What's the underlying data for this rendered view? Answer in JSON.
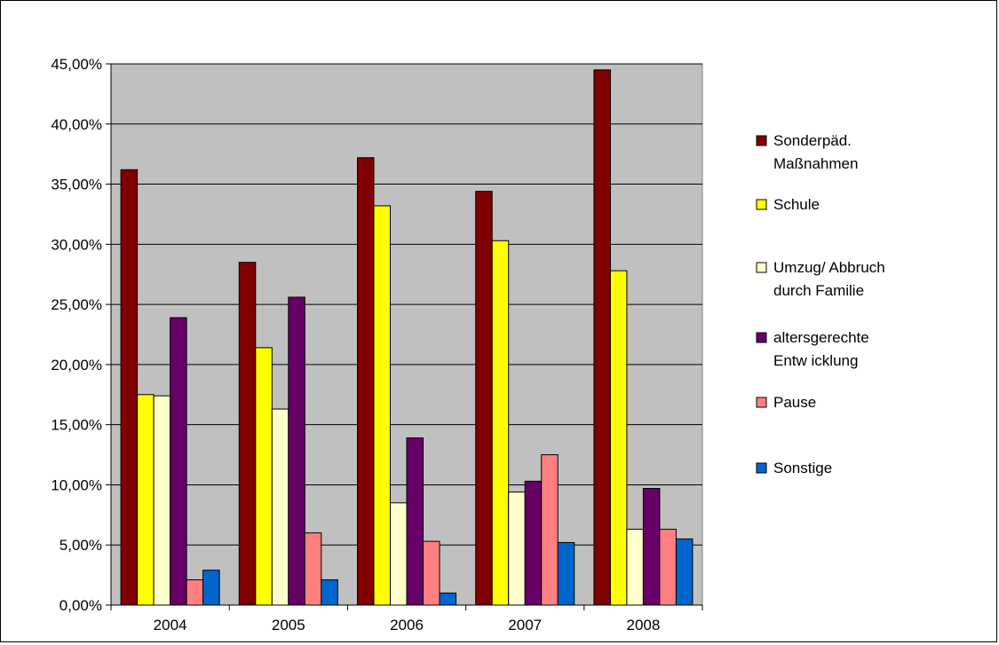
{
  "chart_data": {
    "type": "bar",
    "categories": [
      "2004",
      "2005",
      "2006",
      "2007",
      "2008"
    ],
    "series": [
      {
        "name": "Sonderpäd. Maßnahmen",
        "name_lines": [
          "Sonderpäd.",
          "Maßnahmen"
        ],
        "color": "#800000",
        "values": [
          36.2,
          28.5,
          37.2,
          34.4,
          44.5
        ]
      },
      {
        "name": "Schule",
        "name_lines": [
          "Schule"
        ],
        "color": "#FFFF00",
        "values": [
          17.5,
          21.4,
          33.2,
          30.3,
          27.8
        ]
      },
      {
        "name": "Umzug/ Abbruch durch Familie",
        "name_lines": [
          "Umzug/ Abbruch",
          "durch Familie"
        ],
        "color": "#FFFFCC",
        "values": [
          17.4,
          16.3,
          8.5,
          9.4,
          6.3
        ]
      },
      {
        "name": "altersgerechte Entw icklung",
        "name_lines": [
          "altersgerechte",
          "Entw icklung"
        ],
        "color": "#660066",
        "values": [
          23.9,
          25.6,
          13.9,
          10.3,
          9.7
        ]
      },
      {
        "name": "Pause",
        "name_lines": [
          "Pause"
        ],
        "color": "#FF8080",
        "values": [
          2.1,
          6.0,
          5.3,
          12.5,
          6.3
        ]
      },
      {
        "name": "Sonstige",
        "name_lines": [
          "Sonstige"
        ],
        "color": "#0066CC",
        "values": [
          2.9,
          2.1,
          1.0,
          5.2,
          5.5
        ]
      }
    ],
    "y_ticks": [
      "0,00%",
      "5,00%",
      "10,00%",
      "15,00%",
      "20,00%",
      "25,00%",
      "30,00%",
      "35,00%",
      "40,00%",
      "45,00%"
    ],
    "ylim": [
      0,
      45
    ],
    "title": "",
    "xlabel": "",
    "ylabel": "",
    "grid": true,
    "legend_position": "right",
    "plot_background": "#C0C0C0"
  }
}
